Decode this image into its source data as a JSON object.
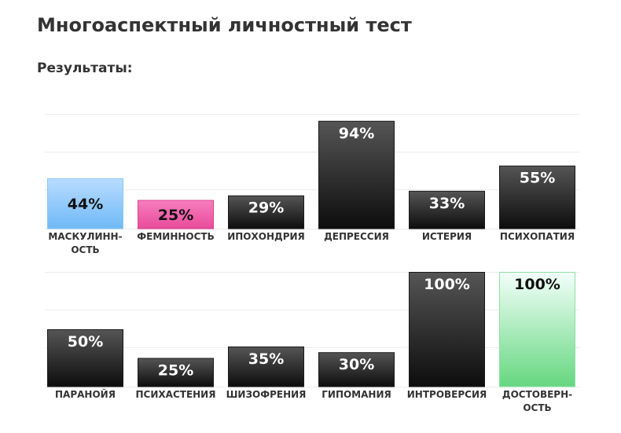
{
  "page": {
    "title": "Многоаспектный личностный тест",
    "subtitle": "Результаты:"
  },
  "colors": {
    "dark_top": "#555555",
    "dark_bottom": "#0d0d0d",
    "blue_top": "#b8dcff",
    "blue_bottom": "#6fb9f6",
    "pink_top": "#f77ebf",
    "pink_bottom": "#e84b9b",
    "green_top": "#f3fffb",
    "green_bottom": "#65d77f",
    "grid": "#ececec"
  },
  "chart_data": [
    {
      "type": "bar",
      "ylim": [
        0,
        100
      ],
      "grid": true,
      "categories": [
        [
          "МАСКУЛИНН-",
          "ОСТЬ"
        ],
        [
          "ФЕМИННОСТЬ"
        ],
        [
          "ИПОХОНДРИЯ"
        ],
        [
          "ДЕПРЕССИЯ"
        ],
        [
          "ИСТЕРИЯ"
        ],
        [
          "ПСИХОПАТИЯ"
        ]
      ],
      "values": [
        44,
        25,
        29,
        94,
        33,
        55
      ],
      "value_labels": [
        "44%",
        "25%",
        "29%",
        "94%",
        "33%",
        "55%"
      ],
      "bar_styles": [
        "blue",
        "pink",
        "dark",
        "dark",
        "dark",
        "dark"
      ]
    },
    {
      "type": "bar",
      "ylim": [
        0,
        100
      ],
      "grid": true,
      "categories": [
        [
          "ПАРАНОЙЯ"
        ],
        [
          "ПСИХАСТЕНИЯ"
        ],
        [
          "ШИЗОФРЕНИЯ"
        ],
        [
          "ГИПОМАНИЯ"
        ],
        [
          "ИНТРОВЕРСИЯ"
        ],
        [
          "ДОСТОВЕРН-",
          "ОСТЬ"
        ]
      ],
      "values": [
        50,
        25,
        35,
        30,
        100,
        100
      ],
      "value_labels": [
        "50%",
        "25%",
        "35%",
        "30%",
        "100%",
        "100%"
      ],
      "bar_styles": [
        "dark",
        "dark",
        "dark",
        "dark",
        "dark",
        "green"
      ]
    }
  ]
}
